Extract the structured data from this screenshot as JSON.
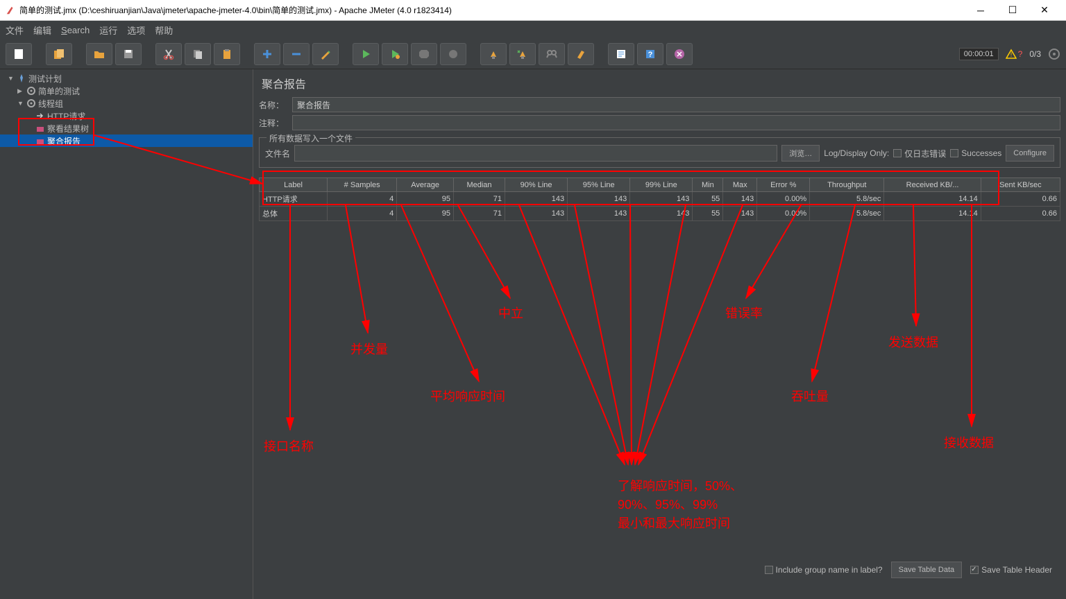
{
  "window": {
    "title": "简单的测试.jmx (D:\\ceshiruanjian\\Java\\jmeter\\apache-jmeter-4.0\\bin\\简单的测试.jmx) - Apache JMeter (4.0 r1823414)"
  },
  "menu": {
    "file": "文件",
    "edit": "编辑",
    "search": "Search",
    "run": "运行",
    "options": "选项",
    "help": "帮助"
  },
  "toolbar_right": {
    "timer": "00:00:01",
    "warn_count": "?",
    "threads": "0/3"
  },
  "tree": {
    "root": "测试计划",
    "n1": "简单的测试",
    "n2": "线程组",
    "n3": "HTTP请求",
    "n4": "察看结果树",
    "n5": "聚合报告"
  },
  "panel": {
    "title": "聚合报告",
    "name_label": "名称：",
    "name_value": "聚合报告",
    "comment_label": "注释：",
    "fieldset_legend": "所有数据写入一个文件",
    "filename_label": "文件名",
    "browse": "浏览…",
    "logdisplay": "Log/Display Only:",
    "only_errors": "仅日志错误",
    "successes": "Successes",
    "configure": "Configure"
  },
  "table": {
    "columns": [
      "Label",
      "# Samples",
      "Average",
      "Median",
      "90% Line",
      "95% Line",
      "99% Line",
      "Min",
      "Max",
      "Error %",
      "Throughput",
      "Received KB/...",
      "Sent KB/sec"
    ],
    "rows": [
      [
        "HTTP请求",
        "4",
        "95",
        "71",
        "143",
        "143",
        "143",
        "55",
        "143",
        "0.00%",
        "5.8/sec",
        "14.14",
        "0.66"
      ],
      [
        "总体",
        "4",
        "95",
        "71",
        "143",
        "143",
        "143",
        "55",
        "143",
        "0.00%",
        "5.8/sec",
        "14.14",
        "0.66"
      ]
    ]
  },
  "footer": {
    "include_group": "Include group name in label?",
    "save_data": "Save Table Data",
    "save_header": "Save Table Header"
  },
  "annotations": {
    "a1": "接口名称",
    "a2": "并发量",
    "a3": "平均响应时间",
    "a4": "中立",
    "a5": "错误率",
    "a6": "吞吐量",
    "a7": "发送数据",
    "a8": "接收数据",
    "a9": "了解响应时间，50%、\n90%、95%、99%\n最小和最大响应时间"
  }
}
